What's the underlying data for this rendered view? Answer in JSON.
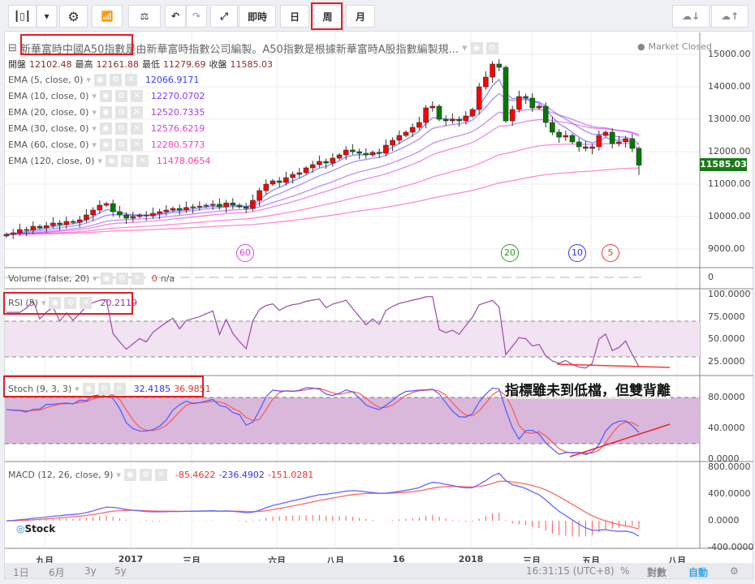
{
  "toolbar": {
    "realtime": "即時",
    "day": "日",
    "week": "周",
    "month": "月",
    "active": "周"
  },
  "title": "新華富時中國A50指數是由新華富時指數公司編製。A50指數是根據新華富時A股指數編製規...",
  "title_prefix_icon": "collapse-icon",
  "market_status": "Market Closed",
  "ohlc": {
    "open_label": "開盤",
    "open": "12102.48",
    "high_label": "最高",
    "high": "12161.88",
    "low_label": "最低",
    "low": "11279.69",
    "close_label": "收盤",
    "close": "11585.03"
  },
  "ema": [
    {
      "label": "EMA (5, close, 0)",
      "value": "12066.9171",
      "color": "#3b3bff",
      "period": 5
    },
    {
      "label": "EMA (10, close, 0)",
      "value": "12270.0702",
      "color": "#7a3cff",
      "period": 10
    },
    {
      "label": "EMA (20, close, 0)",
      "value": "12520.7335",
      "color": "#a53cf0",
      "period": 20
    },
    {
      "label": "EMA (30, close, 0)",
      "value": "12576.6219",
      "color": "#e03ce0",
      "period": 30
    },
    {
      "label": "EMA (60, close, 0)",
      "value": "12280.5773",
      "color": "#ff3cc0",
      "period": 60
    },
    {
      "label": "EMA (120, close, 0)",
      "value": "11478.0654",
      "color": "#ff3ca8",
      "period": 120
    }
  ],
  "volume": {
    "label": "Volume (false, 20)",
    "value": "0",
    "na": "n/a"
  },
  "rsi": {
    "label": "RSI (5)",
    "value": "20.2119"
  },
  "stoch": {
    "label": "Stoch (9, 3, 3)",
    "k": "32.4185",
    "d": "36.9851"
  },
  "macd": {
    "label": "MACD (12, 26, close, 9)",
    "hist": "-85.4622",
    "macd": "-236.4902",
    "signal": "-151.0281"
  },
  "annotation": "指標雖未到低檔，但雙背離",
  "circles": [
    {
      "text": "60",
      "color": "#e040e0"
    },
    {
      "text": "20",
      "color": "#2a9a2a"
    },
    {
      "text": "10",
      "color": "#3333ff"
    },
    {
      "text": "5",
      "color": "#e33"
    }
  ],
  "price_axis": [
    "15000.00",
    "14000.00",
    "13000.00",
    "12000.00",
    "11000.00",
    "10000.00",
    "9000.00"
  ],
  "last_price": "11585.03",
  "volume_axis": "0",
  "rsi_axis": [
    "100.0000",
    "75.0000",
    "50.0000",
    "25.0000"
  ],
  "stoch_axis": [
    "80.0000",
    "40.0000",
    "0.0000"
  ],
  "macd_axis": [
    "800.0000",
    "400.0000",
    "0.0000",
    "-400.0000"
  ],
  "time_axis": [
    "九月",
    "2017",
    "三月",
    "六月",
    "八月",
    "16",
    "2018",
    "三月",
    "五月",
    "八月"
  ],
  "ranges": [
    "1日",
    "6月",
    "3y",
    "5y"
  ],
  "footer": {
    "time": "16:31:15 (UTC+8)",
    "percent": "%",
    "log": "對數",
    "auto": "自動"
  },
  "watermark": "Stock",
  "colors": {
    "up": "#ff0000",
    "down": "#007a00",
    "stoch_band": "#d9b8dc",
    "rsi_band": "#f1e3f1"
  },
  "chart_data": {
    "type": "candlestick",
    "interval": "weekly",
    "ylim": [
      8600,
      15600
    ],
    "close": [
      9450,
      9500,
      9600,
      9580,
      9700,
      9650,
      9720,
      9800,
      9750,
      9850,
      9820,
      9900,
      10050,
      10200,
      10350,
      10400,
      10150,
      10050,
      9950,
      10000,
      10050,
      10020,
      10100,
      10150,
      10200,
      10250,
      10200,
      10280,
      10300,
      10320,
      10350,
      10380,
      10300,
      10420,
      10350,
      10300,
      10250,
      10500,
      10800,
      11000,
      11100,
      11050,
      11200,
      11300,
      11350,
      11500,
      11600,
      11700,
      11650,
      11800,
      11900,
      12050,
      12000,
      11950,
      11900,
      11980,
      11950,
      12200,
      12350,
      12500,
      12600,
      12750,
      12900,
      13350,
      13400,
      13000,
      12950,
      13000,
      12950,
      13100,
      13300,
      14000,
      14300,
      14700,
      14600,
      12950,
      13300,
      13700,
      13650,
      13350,
      13400,
      12900,
      12600,
      12450,
      12500,
      12300,
      12150,
      12100,
      12150,
      12500,
      12600,
      12250,
      12300,
      12400,
      12100,
      11585.03
    ],
    "last_candle": {
      "open": 12102.48,
      "high": 12161.88,
      "low": 11279.69,
      "close": 11585.03
    }
  }
}
